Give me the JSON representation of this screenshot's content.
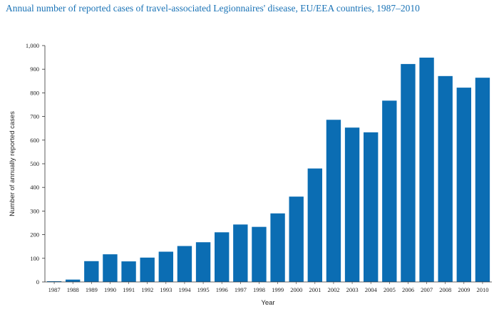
{
  "chart_data": {
    "type": "bar",
    "title": "Annual number of reported cases of travel-associated Legionnaires' disease, EU/EEA countries, 1987–2010",
    "xlabel": "Year",
    "ylabel": "Number of annually reported cases",
    "ylim": [
      0,
      1000
    ],
    "yticks": [
      0,
      100,
      200,
      300,
      400,
      500,
      600,
      700,
      800,
      900,
      1000
    ],
    "ytick_labels": [
      "0",
      "100",
      "200",
      "300",
      "400",
      "500",
      "600",
      "700",
      "800",
      "900",
      "1,000"
    ],
    "categories": [
      "1987",
      "1988",
      "1989",
      "1990",
      "1991",
      "1992",
      "1993",
      "1994",
      "1995",
      "1996",
      "1997",
      "1998",
      "1999",
      "2000",
      "2001",
      "2002",
      "2003",
      "2004",
      "2005",
      "2006",
      "2007",
      "2008",
      "2009",
      "2010"
    ],
    "values": [
      3,
      10,
      88,
      117,
      87,
      103,
      128,
      152,
      168,
      210,
      243,
      233,
      290,
      361,
      480,
      686,
      653,
      633,
      767,
      922,
      949,
      871,
      822,
      864
    ],
    "bar_color": "#0b6db3",
    "grid": false,
    "legend": "none"
  }
}
